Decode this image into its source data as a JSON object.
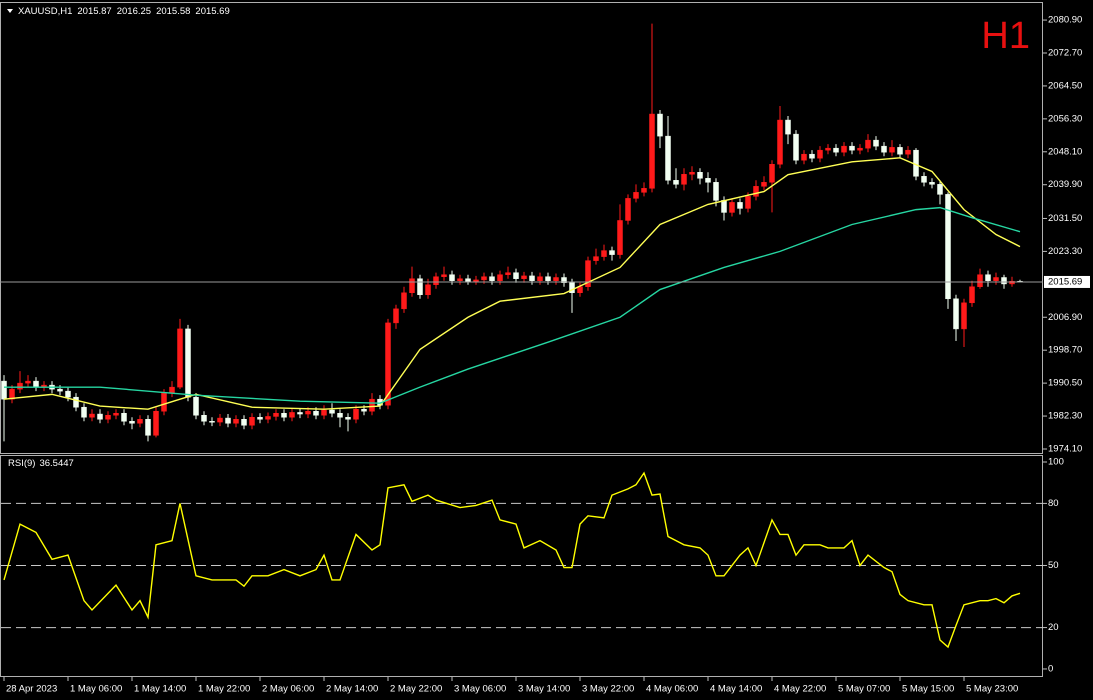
{
  "chart_data": {
    "type": "candlestick",
    "title": "XAUUSD,H1",
    "timeframe": "H1",
    "up_color": "#ff1a1a",
    "down_color": "#f2fff2",
    "xlim": [
      -0.5,
      129.875
    ],
    "xticks": [
      {
        "value": 0,
        "label": "28 Apr 2023"
      },
      {
        "value": 8,
        "label": "1 May 06:00"
      },
      {
        "value": 16,
        "label": "1 May 14:00"
      },
      {
        "value": 24,
        "label": "1 May 22:00"
      },
      {
        "value": 32,
        "label": "2 May 06:00"
      },
      {
        "value": 40,
        "label": "2 May 14:00"
      },
      {
        "value": 48,
        "label": "2 May 22:00"
      },
      {
        "value": 56,
        "label": "3 May 06:00"
      },
      {
        "value": 64,
        "label": "3 May 14:00"
      },
      {
        "value": 72,
        "label": "3 May 22:00"
      },
      {
        "value": 80,
        "label": "4 May 06:00"
      },
      {
        "value": 88,
        "label": "4 May 14:00"
      },
      {
        "value": 96,
        "label": "4 May 22:00"
      },
      {
        "value": 104,
        "label": "5 May 07:00"
      },
      {
        "value": 112,
        "label": "5 May 15:00"
      },
      {
        "value": 120,
        "label": "5 May 23:00"
      }
    ],
    "ylim": [
      1973.35,
      2084.9
    ],
    "yticks": [
      {
        "value": 2080.9,
        "label": "2080.90"
      },
      {
        "value": 2072.7,
        "label": "2072.70"
      },
      {
        "value": 2064.5,
        "label": "2064.50"
      },
      {
        "value": 2056.3,
        "label": "2056.30"
      },
      {
        "value": 2048.1,
        "label": "2048.10"
      },
      {
        "value": 2039.9,
        "label": "2039.90"
      },
      {
        "value": 2031.5,
        "label": "2031.50"
      },
      {
        "value": 2023.3,
        "label": "2023.30"
      },
      {
        "value": 2006.9,
        "label": "2006.90"
      },
      {
        "value": 1998.7,
        "label": "1998.70"
      },
      {
        "value": 1990.5,
        "label": "1990.50"
      },
      {
        "value": 1982.3,
        "label": "1982.30"
      },
      {
        "value": 1974.1,
        "label": "1974.10"
      }
    ],
    "candles": {
      "open": [
        1991.0,
        1986.5,
        1989.0,
        1990.5,
        1991.0,
        1989.5,
        1990.0,
        1989.0,
        1988.5,
        1987.0,
        1984.5,
        1982.0,
        1982.8,
        1981.5,
        1982.5,
        1983.0,
        1981.0,
        1980.5,
        1981.5,
        1977.5,
        1983.5,
        1988.0,
        1989.5,
        2004.0,
        1987.0,
        1982.5,
        1981.0,
        1980.8,
        1981.8,
        1980.5,
        1981.5,
        1980.0,
        1982.0,
        1981.5,
        1982.2,
        1983.0,
        1982.0,
        1983.2,
        1982.8,
        1983.5,
        1982.5,
        1983.8,
        1983.0,
        1982.0,
        1981.5,
        1984.0,
        1983.5,
        1986.5,
        1985.0,
        2005.5,
        2009.0,
        2013.0,
        2016.5,
        2012.5,
        2015.0,
        2017.0,
        2017.5,
        2016.0,
        2016.5,
        2015.8,
        2016.2,
        2017.0,
        2016.0,
        2017.5,
        2018.0,
        2016.5,
        2017.2,
        2016.0,
        2017.0,
        2016.0,
        2016.8,
        2015.5,
        2013.0,
        2014.5,
        2021.0,
        2022.0,
        2023.5,
        2022.5,
        2031.0,
        2036.5,
        2038.0,
        2039.0,
        2057.5,
        2052.0,
        2041.0,
        2040.0,
        2042.5,
        2043.0,
        2041.5,
        2040.5,
        2036.0,
        2033.0,
        2035.5,
        2034.0,
        2037.0,
        2039.5,
        2040.5,
        2045.0,
        2056.0,
        2052.5,
        2046.0,
        2047.5,
        2046.5,
        2048.5,
        2049.0,
        2048.0,
        2049.5,
        2048.5,
        2049.0,
        2051.0,
        2049.5,
        2048.0,
        2049.2,
        2047.5,
        2048.5,
        2042.0,
        2040.5,
        2040.0,
        2037.5,
        2011.5,
        2004.0,
        2010.5,
        2014.5,
        2017.5,
        2016.0,
        2016.8,
        2015.2,
        2015.87
      ],
      "high": [
        1992.5,
        1990,
        1993.5,
        1992.5,
        1992,
        1991,
        1991,
        1990,
        1989.5,
        1988,
        1985.5,
        1984,
        1984,
        1983.5,
        1984,
        1984,
        1982,
        1982.5,
        1982.5,
        1984.5,
        1989,
        1991,
        2006.5,
        2005,
        1988,
        1983.5,
        1982,
        1982.8,
        1982.8,
        1982.5,
        1982.5,
        1983,
        1983,
        1983.2,
        1984,
        1984,
        1984.2,
        1984.2,
        1984.5,
        1984.5,
        1985,
        1985.5,
        1984,
        1983,
        1985,
        1985,
        1988,
        1987.5,
        2006.5,
        2010,
        2014.5,
        2019.5,
        2017.5,
        2016.5,
        2018,
        2019.5,
        2018.5,
        2017.5,
        2017.5,
        2017.2,
        2018,
        2018,
        2018.5,
        2019.5,
        2019,
        2018.2,
        2018.2,
        2018,
        2018,
        2017.8,
        2017.8,
        2016.5,
        2015.5,
        2022,
        2024,
        2025,
        2024.5,
        2035,
        2037.5,
        2040,
        2040.5,
        2080,
        2058.5,
        2057,
        2044,
        2044,
        2044.5,
        2044,
        2043,
        2041.5,
        2037,
        2036.5,
        2036.5,
        2038,
        2041,
        2042,
        2046,
        2059.5,
        2057,
        2053.5,
        2048.5,
        2048.5,
        2049.5,
        2050,
        2050,
        2050.5,
        2050.5,
        2050,
        2052.5,
        2052,
        2050.5,
        2051,
        2050,
        2049.5,
        2049,
        2043,
        2041.5,
        2041,
        2038,
        2012.5,
        2011.5,
        2016,
        2019,
        2018.5,
        2018,
        2017.5,
        2017,
        2016.25
      ],
      "low": [
        1976,
        1985.5,
        1988,
        1989.5,
        1988.5,
        1988.5,
        1988,
        1987.5,
        1986,
        1983.5,
        1981,
        1981,
        1980.5,
        1980.5,
        1981.5,
        1980,
        1979,
        1979.5,
        1976,
        1977,
        1982.5,
        1987,
        1989,
        1986,
        1981.5,
        1980,
        1979.8,
        1979.8,
        1979.5,
        1979.5,
        1979,
        1979,
        1980.5,
        1980.5,
        1981.2,
        1981,
        1981,
        1981.8,
        1981.8,
        1981.5,
        1981.5,
        1982,
        1979.5,
        1978.5,
        1980.5,
        1982.5,
        1982.5,
        1984,
        1984,
        2004,
        2008,
        2012,
        2011.5,
        2011.5,
        2014,
        2016,
        2015,
        2015,
        2015,
        2015,
        2015.2,
        2015,
        2015,
        2016.5,
        2015.5,
        2015.5,
        2015,
        2015,
        2015,
        2015,
        2014.5,
        2008,
        2012,
        2013.5,
        2020,
        2021,
        2021,
        2021.5,
        2030,
        2035.5,
        2037,
        2038,
        2049,
        2040,
        2039,
        2038.5,
        2041,
        2040,
        2038,
        2034.5,
        2031,
        2032,
        2032.5,
        2033,
        2036,
        2038.5,
        2033,
        2044,
        2050,
        2045,
        2045,
        2045.5,
        2045.5,
        2047.5,
        2047,
        2047,
        2047.5,
        2047.5,
        2048,
        2048.5,
        2047,
        2047,
        2046.5,
        2046.5,
        2041,
        2039.5,
        2039,
        2035,
        2009,
        2001,
        1999.5,
        2009.5,
        2014,
        2014.5,
        2015,
        2014,
        2014.5,
        2015.58
      ],
      "close": [
        1986.5,
        1989.0,
        1990.5,
        1991.0,
        1989.5,
        1990.0,
        1989.0,
        1988.5,
        1987.0,
        1984.5,
        1982.0,
        1982.8,
        1981.5,
        1982.5,
        1983.0,
        1981.0,
        1980.5,
        1981.5,
        1977.5,
        1983.5,
        1988.0,
        1989.5,
        2004.0,
        1987.0,
        1982.5,
        1981.0,
        1980.8,
        1981.8,
        1980.5,
        1981.5,
        1980.0,
        1982.0,
        1981.5,
        1982.2,
        1983.0,
        1982.0,
        1983.2,
        1982.8,
        1983.5,
        1982.5,
        1983.8,
        1983.0,
        1982.0,
        1981.5,
        1984.0,
        1983.5,
        1986.5,
        1985.0,
        2005.5,
        2009.0,
        2013.0,
        2016.5,
        2012.5,
        2015.0,
        2017.0,
        2017.5,
        2016.0,
        2016.5,
        2015.8,
        2016.2,
        2017.0,
        2016.0,
        2017.5,
        2018.0,
        2016.5,
        2017.2,
        2016.0,
        2017.0,
        2016.0,
        2016.8,
        2015.5,
        2013.0,
        2014.5,
        2021.0,
        2022.0,
        2023.5,
        2022.5,
        2031.0,
        2036.5,
        2038.0,
        2039.0,
        2057.5,
        2052.0,
        2041.0,
        2040.0,
        2042.5,
        2043.0,
        2041.5,
        2040.5,
        2036.0,
        2033.0,
        2035.5,
        2034.0,
        2037.0,
        2039.5,
        2040.5,
        2045.0,
        2056.0,
        2052.5,
        2046.0,
        2047.5,
        2046.5,
        2048.5,
        2049.0,
        2048.0,
        2049.5,
        2048.5,
        2049.0,
        2051.0,
        2049.5,
        2048.0,
        2049.2,
        2047.5,
        2048.5,
        2042.0,
        2040.5,
        2040.0,
        2037.5,
        2011.5,
        2004.0,
        2010.5,
        2014.5,
        2017.5,
        2016.0,
        2016.8,
        2015.2,
        2015.87,
        2015.69
      ]
    },
    "ma_lines": [
      {
        "color": "#ffff55",
        "x": [
          0,
          6,
          12,
          18,
          22,
          24,
          31,
          40,
          47,
          52,
          58,
          62,
          70,
          77,
          82,
          88,
          95,
          98,
          106,
          112,
          116,
          120,
          124,
          127
        ],
        "values": [
          1986.5,
          1987.7,
          1984.8,
          1984,
          1986.5,
          1987.7,
          1984.5,
          1984,
          1984.8,
          1998.9,
          2006.9,
          2010.9,
          2012.8,
          2019.3,
          2030,
          2035,
          2038.2,
          2042.4,
          2045.6,
          2046.6,
          2043.2,
          2033.7,
          2027.5,
          2024.5
        ]
      },
      {
        "color": "#26d6a2",
        "x": [
          0,
          12,
          24,
          37,
          47,
          52,
          58,
          68,
          77,
          82,
          90,
          97,
          106,
          114,
          117,
          121,
          127
        ],
        "values": [
          1989.5,
          1989.5,
          1987.5,
          1986,
          1985.5,
          1989.5,
          1994,
          2000.7,
          2006.9,
          2013.8,
          2019.3,
          2023.3,
          2030,
          2033.7,
          2034.2,
          2031.7,
          2028.2
        ]
      }
    ],
    "indicator": {
      "type": "line",
      "title": "RSI(9)",
      "color": "#ffff00",
      "ylim": [
        -3.4,
        102.9
      ],
      "yticks": [
        100,
        80,
        50,
        20,
        0
      ],
      "levels": [
        80,
        50,
        20
      ],
      "x": [
        0,
        2,
        4,
        6,
        8,
        10,
        11,
        14,
        16,
        17,
        18,
        19,
        21,
        22,
        24,
        26,
        29,
        30,
        31,
        33,
        35,
        37,
        39,
        40,
        41,
        42,
        44,
        46,
        47,
        48,
        50,
        51,
        53,
        54,
        57,
        59,
        61,
        62,
        64,
        65,
        67,
        69,
        70,
        71,
        72,
        73,
        75,
        76,
        78,
        79,
        80,
        81,
        82,
        83,
        84,
        85,
        87,
        88,
        89,
        90,
        92,
        93,
        94,
        96,
        97,
        98,
        99,
        100,
        102,
        103,
        105,
        106,
        107,
        108,
        110,
        111,
        112,
        113,
        115,
        116,
        117,
        118,
        119,
        120,
        122,
        123,
        124,
        125,
        126,
        127
      ],
      "values": [
        43,
        70,
        66,
        53,
        55,
        33,
        28.5,
        40.5,
        28.5,
        33,
        25,
        60,
        62,
        80,
        45,
        43,
        43,
        40,
        45,
        45,
        48,
        45,
        48,
        55,
        43,
        43,
        65,
        57.5,
        60,
        87.5,
        89,
        81,
        84,
        81.6,
        78,
        79,
        81.6,
        72,
        70,
        58.5,
        62,
        57.5,
        49,
        49,
        70,
        74,
        73,
        84,
        87,
        89,
        94.7,
        84,
        84.5,
        64,
        62,
        60,
        58.5,
        55,
        45,
        45,
        55,
        58.5,
        50,
        72,
        65,
        65,
        55,
        60,
        60,
        58.5,
        58.5,
        62,
        50,
        55,
        49,
        47,
        36,
        33,
        31,
        31,
        14,
        10.6,
        21,
        31,
        33,
        33,
        34,
        32,
        35.3,
        36.5447
      ]
    }
  }
}
